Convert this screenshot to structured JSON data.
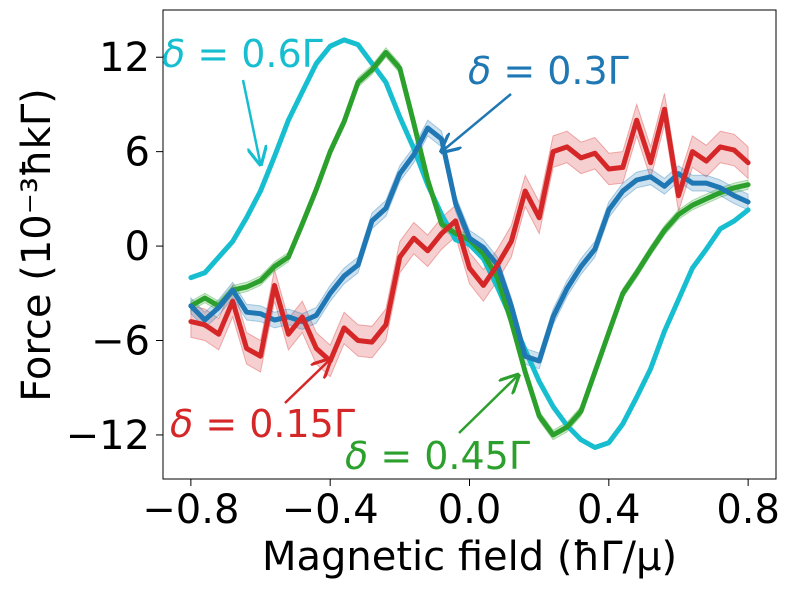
{
  "chart_data": {
    "type": "line",
    "title": "",
    "xlabel": "Magnetic field (ħΓ/μ)",
    "ylabel": "Force (10⁻³ħkΓ)",
    "xlim": [
      -0.88,
      0.88
    ],
    "ylim": [
      -14.8,
      15
    ],
    "xticks": [
      -0.8,
      -0.4,
      0.0,
      0.4,
      0.8
    ],
    "xtick_labels": [
      "−0.8",
      "−0.4",
      "0.0",
      "0.4",
      "0.8"
    ],
    "yticks": [
      -12,
      -6,
      0,
      6,
      12
    ],
    "ytick_labels": [
      "−12",
      "−6",
      "0",
      "6",
      "12"
    ],
    "grid": false,
    "legend": "none (inline annotations)",
    "series": [
      {
        "name": "δ = 0.15Γ",
        "color": "#d62728",
        "band": 1.0,
        "x": [
          -0.8,
          -0.76,
          -0.72,
          -0.68,
          -0.64,
          -0.6,
          -0.56,
          -0.52,
          -0.48,
          -0.44,
          -0.4,
          -0.36,
          -0.32,
          -0.28,
          -0.24,
          -0.2,
          -0.16,
          -0.12,
          -0.08,
          -0.04,
          0.0,
          0.04,
          0.08,
          0.12,
          0.16,
          0.2,
          0.24,
          0.28,
          0.32,
          0.36,
          0.4,
          0.44,
          0.48,
          0.52,
          0.56,
          0.6,
          0.64,
          0.68,
          0.72,
          0.76,
          0.8
        ],
        "y": [
          -4.8,
          -5.0,
          -5.6,
          -3.5,
          -6.5,
          -7.0,
          -2.5,
          -5.6,
          -4.5,
          -6.5,
          -7.3,
          -5.2,
          -6.0,
          -6.1,
          -5.0,
          -0.7,
          0.5,
          -0.3,
          0.8,
          1.6,
          -1.4,
          -2.5,
          -1.2,
          0.3,
          3.5,
          1.8,
          6.0,
          6.3,
          5.6,
          5.9,
          4.9,
          5.0,
          8.0,
          5.3,
          8.7,
          3.2,
          6.0,
          5.4,
          6.3,
          6.1,
          5.3
        ]
      },
      {
        "name": "δ = 0.3Γ",
        "color": "#1f77b4",
        "band": 0.5,
        "x": [
          -0.8,
          -0.76,
          -0.72,
          -0.68,
          -0.64,
          -0.6,
          -0.56,
          -0.52,
          -0.48,
          -0.44,
          -0.4,
          -0.36,
          -0.32,
          -0.28,
          -0.24,
          -0.2,
          -0.16,
          -0.12,
          -0.08,
          -0.04,
          0.0,
          0.04,
          0.08,
          0.12,
          0.16,
          0.2,
          0.24,
          0.28,
          0.32,
          0.36,
          0.4,
          0.44,
          0.48,
          0.52,
          0.56,
          0.6,
          0.64,
          0.68,
          0.72,
          0.76,
          0.8
        ],
        "y": [
          -3.8,
          -4.7,
          -3.9,
          -2.8,
          -4.2,
          -4.3,
          -4.7,
          -4.5,
          -4.8,
          -4.4,
          -3.0,
          -1.9,
          -1.2,
          1.6,
          2.4,
          4.6,
          5.8,
          7.5,
          6.8,
          2.7,
          0.5,
          -0.1,
          -1.2,
          -3.8,
          -7.0,
          -7.3,
          -4.5,
          -2.7,
          -1.3,
          -0.2,
          2.3,
          3.5,
          4.2,
          4.4,
          3.8,
          4.6,
          4.0,
          4.0,
          3.7,
          3.2,
          2.8
        ]
      },
      {
        "name": "δ = 0.45Γ",
        "color": "#2ca02c",
        "band": 0.3,
        "x": [
          -0.8,
          -0.76,
          -0.72,
          -0.68,
          -0.64,
          -0.6,
          -0.56,
          -0.52,
          -0.48,
          -0.44,
          -0.4,
          -0.36,
          -0.32,
          -0.28,
          -0.24,
          -0.2,
          -0.16,
          -0.12,
          -0.08,
          -0.04,
          0.0,
          0.04,
          0.08,
          0.12,
          0.16,
          0.2,
          0.24,
          0.28,
          0.32,
          0.36,
          0.4,
          0.44,
          0.48,
          0.52,
          0.56,
          0.6,
          0.64,
          0.68,
          0.72,
          0.76,
          0.8
        ],
        "y": [
          -3.8,
          -3.3,
          -3.8,
          -2.8,
          -2.6,
          -2.2,
          -1.3,
          -0.7,
          1.4,
          3.6,
          6.0,
          7.9,
          10.4,
          11.2,
          12.3,
          11.3,
          7.8,
          4.2,
          1.4,
          0.8,
          0.4,
          -0.5,
          -2.0,
          -4.8,
          -8.0,
          -10.8,
          -12.0,
          -11.5,
          -10.5,
          -8.0,
          -5.5,
          -3.0,
          -1.7,
          -0.3,
          1.0,
          2.0,
          2.6,
          3.0,
          3.4,
          3.7,
          3.9
        ]
      },
      {
        "name": "δ = 0.6Γ",
        "color": "#17becf",
        "band": 0,
        "x": [
          -0.8,
          -0.76,
          -0.72,
          -0.68,
          -0.64,
          -0.6,
          -0.56,
          -0.52,
          -0.48,
          -0.44,
          -0.4,
          -0.36,
          -0.32,
          -0.28,
          -0.24,
          -0.2,
          -0.16,
          -0.12,
          -0.08,
          -0.04,
          0.0,
          0.04,
          0.08,
          0.12,
          0.16,
          0.2,
          0.24,
          0.28,
          0.32,
          0.36,
          0.4,
          0.44,
          0.48,
          0.52,
          0.56,
          0.6,
          0.64,
          0.68,
          0.72,
          0.76,
          0.8
        ],
        "y": [
          -2.0,
          -1.7,
          -0.7,
          0.3,
          1.8,
          3.5,
          5.7,
          8.0,
          9.8,
          11.6,
          12.7,
          13.1,
          12.8,
          11.6,
          10.4,
          8.2,
          6.2,
          3.9,
          2.0,
          0.4,
          0.1,
          -0.8,
          -2.6,
          -4.6,
          -6.6,
          -8.6,
          -10.2,
          -11.4,
          -12.3,
          -12.8,
          -12.5,
          -11.3,
          -9.6,
          -7.8,
          -5.4,
          -3.4,
          -1.4,
          -0.2,
          1.1,
          1.6,
          2.3
        ]
      }
    ],
    "annotations": [
      {
        "series": "δ = 0.6Γ",
        "text_prefix": "δ = ",
        "text_value": "0.6Γ",
        "color": "#17becf",
        "arrow_to": [
          -0.6,
          5.2
        ]
      },
      {
        "series": "δ = 0.3Γ",
        "text_prefix": "δ = ",
        "text_value": "0.3Γ",
        "color": "#1f77b4",
        "arrow_to": [
          -0.08,
          6.0
        ]
      },
      {
        "series": "δ = 0.15Γ",
        "text_prefix": "δ = ",
        "text_value": "0.15Γ",
        "color": "#d62728",
        "arrow_to": [
          -0.4,
          -7.2
        ]
      },
      {
        "series": "δ = 0.45Γ",
        "text_prefix": "δ = ",
        "text_value": "0.45Γ",
        "color": "#2ca02c",
        "arrow_to": [
          0.14,
          -8.2
        ]
      }
    ]
  }
}
